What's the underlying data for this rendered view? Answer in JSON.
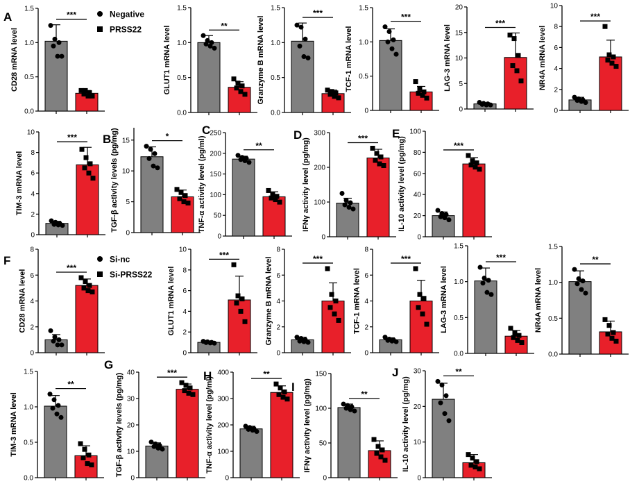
{
  "colors": {
    "group1": "#808080",
    "group2": "#e8202a",
    "axis": "#000000"
  },
  "legends": [
    {
      "entries": [
        {
          "marker": "circle",
          "label": "Negative"
        },
        {
          "marker": "square",
          "label": "PRSS22"
        }
      ]
    },
    {
      "entries": [
        {
          "marker": "circle",
          "label": "Si-nc"
        },
        {
          "marker": "square",
          "label": "Si-PRSS22"
        }
      ]
    }
  ],
  "chart_data": [
    {
      "type": "bar",
      "panel_letter": "A",
      "ylabel": "CD28 mRNA level",
      "ylim": [
        0,
        1.5
      ],
      "yticks": [
        0,
        0.5,
        1.0,
        1.5
      ],
      "tick_labels": [
        "0.0",
        "0.5",
        "1.0",
        "1.5"
      ],
      "categories": [
        "Negative",
        "PRSS22"
      ],
      "values": [
        1.02,
        0.26
      ],
      "errors": [
        0.24,
        0.04
      ],
      "points": [
        [
          1.25,
          1.05,
          1.0,
          0.95,
          0.8,
          0.8
        ],
        [
          0.3,
          0.3,
          0.27,
          0.25,
          0.22,
          0.22
        ]
      ],
      "significance": "***"
    },
    {
      "type": "bar",
      "panel_letter": "",
      "ylabel": "GLUT1 mRNA level",
      "ylim": [
        0,
        1.5
      ],
      "yticks": [
        0,
        0.5,
        1.0,
        1.5
      ],
      "tick_labels": [
        "0.0",
        "0.5",
        "1.0",
        "1.5"
      ],
      "categories": [
        "Negative",
        "PRSS22"
      ],
      "values": [
        1.0,
        0.36
      ],
      "errors": [
        0.1,
        0.08
      ],
      "points": [
        [
          1.1,
          1.03,
          1.0,
          0.98,
          0.95,
          0.92
        ],
        [
          0.48,
          0.42,
          0.38,
          0.35,
          0.3,
          0.26
        ]
      ],
      "significance": "**"
    },
    {
      "type": "bar",
      "panel_letter": "",
      "ylabel": "Granzyme B mRNA level",
      "ylim": [
        0,
        1.5
      ],
      "yticks": [
        0,
        0.5,
        1.0,
        1.5
      ],
      "tick_labels": [
        "0.0",
        "0.5",
        "1.0",
        "1.5"
      ],
      "categories": [
        "Negative",
        "PRSS22"
      ],
      "values": [
        1.02,
        0.27
      ],
      "errors": [
        0.26,
        0.05
      ],
      "points": [
        [
          1.25,
          1.22,
          1.05,
          0.95,
          0.8,
          0.78
        ],
        [
          0.32,
          0.3,
          0.28,
          0.26,
          0.23,
          0.21
        ]
      ],
      "significance": "***"
    },
    {
      "type": "bar",
      "panel_letter": "",
      "ylabel": "TCF-1 mRNA level",
      "ylim": [
        0,
        1.5
      ],
      "yticks": [
        0,
        0.5,
        1.0,
        1.5
      ],
      "tick_labels": [
        "0",
        "0.5",
        "1.0",
        "1.5"
      ],
      "categories": [
        "Negative",
        "PRSS22"
      ],
      "values": [
        1.02,
        0.27
      ],
      "errors": [
        0.17,
        0.08
      ],
      "points": [
        [
          1.22,
          1.15,
          1.03,
          1.0,
          0.9,
          0.82
        ],
        [
          0.42,
          0.32,
          0.27,
          0.25,
          0.22,
          0.18
        ]
      ],
      "significance": "***"
    },
    {
      "type": "bar",
      "panel_letter": "",
      "ylabel": "LAG-3 mRNA level",
      "ylim": [
        0,
        20
      ],
      "yticks": [
        0,
        5,
        10,
        15,
        20
      ],
      "tick_labels": [
        "0",
        "5",
        "10",
        "15",
        "20"
      ],
      "categories": [
        "Negative",
        "PRSS22"
      ],
      "values": [
        1.0,
        10.1
      ],
      "errors": [
        0.2,
        4.8
      ],
      "points": [
        [
          1.3,
          1.1,
          1.0,
          0.9,
          0.8,
          0.8
        ],
        [
          14.5,
          13.8,
          10.5,
          8.5,
          7.5,
          5.5
        ]
      ],
      "significance": "***"
    },
    {
      "type": "bar",
      "panel_letter": "",
      "ylabel": "NR4A mRNA level",
      "ylim": [
        0,
        10
      ],
      "yticks": [
        0,
        2,
        4,
        6,
        8,
        10
      ],
      "tick_labels": [
        "0",
        "2",
        "4",
        "6",
        "8",
        "10"
      ],
      "categories": [
        "Negative",
        "PRSS22"
      ],
      "values": [
        1.0,
        5.1
      ],
      "errors": [
        0.25,
        1.6
      ],
      "points": [
        [
          1.25,
          1.1,
          1.0,
          0.95,
          0.85,
          0.75
        ],
        [
          8.0,
          5.3,
          5.1,
          4.8,
          4.5,
          4.2
        ]
      ],
      "significance": "***"
    },
    {
      "type": "bar",
      "panel_letter": "",
      "ylabel": "TIM-3 mRNA level",
      "ylim": [
        0,
        10
      ],
      "yticks": [
        0,
        2,
        4,
        6,
        8,
        10
      ],
      "tick_labels": [
        "0",
        "2",
        "4",
        "6",
        "8",
        "10"
      ],
      "categories": [
        "Negative",
        "PRSS22"
      ],
      "values": [
        1.1,
        6.8
      ],
      "errors": [
        0.2,
        1.7
      ],
      "points": [
        [
          1.35,
          1.2,
          1.1,
          1.0,
          0.95,
          0.9
        ],
        [
          8.3,
          7.5,
          6.9,
          6.5,
          6.0,
          5.5
        ]
      ],
      "significance": "***"
    },
    {
      "type": "bar",
      "panel_letter": "B",
      "ylabel": "TGF-β activity levels (pg/mg)",
      "ylim": [
        0,
        17
      ],
      "yticks": [
        0,
        5,
        10,
        15
      ],
      "tick_labels": [
        "0",
        "5",
        "10",
        "15"
      ],
      "categories": [
        "Negative",
        "PRSS22"
      ],
      "values": [
        12.3,
        5.8
      ],
      "errors": [
        1.6,
        1.1
      ],
      "points": [
        [
          14.0,
          13.5,
          12.8,
          12.0,
          10.8,
          10.5
        ],
        [
          7.0,
          6.5,
          6.0,
          5.5,
          5.0,
          4.8
        ]
      ],
      "significance": "*"
    },
    {
      "type": "bar",
      "panel_letter": "C",
      "ylabel": "TNF-α activity level (pg/ml)",
      "ylim": [
        0,
        250
      ],
      "yticks": [
        0,
        50,
        100,
        150,
        200,
        250
      ],
      "tick_labels": [
        "0",
        "50",
        "100",
        "150",
        "200",
        "250"
      ],
      "categories": [
        "Negative",
        "PRSS22"
      ],
      "values": [
        186,
        95
      ],
      "errors": [
        7,
        12
      ],
      "points": [
        [
          195,
          190,
          188,
          185,
          182,
          178
        ],
        [
          110,
          100,
          96,
          92,
          88,
          82
        ]
      ],
      "significance": "**"
    },
    {
      "type": "bar",
      "panel_letter": "D",
      "ylabel": "IFNγ activity level (pg/mg)",
      "ylim": [
        0,
        300
      ],
      "yticks": [
        0,
        100,
        200,
        300
      ],
      "tick_labels": [
        "0",
        "100",
        "200",
        "300"
      ],
      "categories": [
        "Negative",
        "PRSS22"
      ],
      "values": [
        97,
        227
      ],
      "errors": [
        14,
        25
      ],
      "points": [
        [
          125,
          105,
          98,
          92,
          85,
          80
        ],
        [
          255,
          240,
          230,
          220,
          210,
          205
        ]
      ],
      "significance": "***"
    },
    {
      "type": "bar",
      "panel_letter": "E",
      "ylabel": "IL-10 activity level (pg/mg)",
      "ylim": [
        0,
        100
      ],
      "yticks": [
        0,
        20,
        40,
        60,
        80,
        100
      ],
      "tick_labels": [
        "0",
        "20",
        "40",
        "60",
        "80",
        "100"
      ],
      "categories": [
        "Negative",
        "PRSS22"
      ],
      "values": [
        20,
        69
      ],
      "errors": [
        3.5,
        6
      ],
      "points": [
        [
          25,
          22,
          21,
          19,
          18,
          16
        ],
        [
          77,
          72,
          70,
          68,
          66,
          64
        ]
      ],
      "significance": "***"
    },
    {
      "type": "bar",
      "panel_letter": "F",
      "ylabel": "CD28 mRNA level",
      "ylim": [
        0,
        8
      ],
      "yticks": [
        0,
        2,
        4,
        6,
        8
      ],
      "tick_labels": [
        "0",
        "2",
        "4",
        "6",
        "8"
      ],
      "categories": [
        "Si-nc",
        "Si-PRSS22"
      ],
      "values": [
        1.0,
        5.2
      ],
      "errors": [
        0.4,
        0.5
      ],
      "points": [
        [
          1.7,
          1.2,
          1.0,
          0.9,
          0.6,
          0.6
        ],
        [
          5.8,
          5.5,
          5.2,
          5.0,
          4.8,
          4.7
        ]
      ],
      "significance": "***"
    },
    {
      "type": "bar",
      "panel_letter": "",
      "ylabel": "GLUT1 mRNA level",
      "ylim": [
        0,
        10
      ],
      "yticks": [
        0,
        2,
        4,
        6,
        8,
        10
      ],
      "tick_labels": [
        "0",
        "2",
        "4",
        "6",
        "8",
        "10"
      ],
      "categories": [
        "Si-nc",
        "Si-PRSS22"
      ],
      "values": [
        1.0,
        5.1
      ],
      "errors": [
        0.1,
        2.3
      ],
      "points": [
        [
          1.1,
          1.05,
          1.0,
          0.98,
          0.95,
          0.92
        ],
        [
          8.5,
          5.5,
          5.2,
          4.8,
          4.0,
          3.0
        ]
      ],
      "significance": "***"
    },
    {
      "type": "bar",
      "panel_letter": "",
      "ylabel": "Granzyme B mRNA level",
      "ylim": [
        0,
        8
      ],
      "yticks": [
        0,
        2,
        4,
        6,
        8
      ],
      "tick_labels": [
        "0",
        "2",
        "4",
        "6",
        "8"
      ],
      "categories": [
        "Si-nc",
        "Si-PRSS22"
      ],
      "values": [
        1.0,
        4.0
      ],
      "errors": [
        0.2,
        1.4
      ],
      "points": [
        [
          1.2,
          1.1,
          1.0,
          0.9,
          0.85,
          0.8
        ],
        [
          6.5,
          4.5,
          4.0,
          3.5,
          3.0,
          2.5
        ]
      ],
      "significance": "***"
    },
    {
      "type": "bar",
      "panel_letter": "",
      "ylabel": "TCF-1 mRNA level",
      "ylim": [
        0,
        8
      ],
      "yticks": [
        0,
        2,
        4,
        6,
        8
      ],
      "tick_labels": [
        "0",
        "2",
        "4",
        "6",
        "8"
      ],
      "categories": [
        "Si-nc",
        "Si-PRSS22"
      ],
      "values": [
        1.0,
        4.0
      ],
      "errors": [
        0.15,
        1.6
      ],
      "points": [
        [
          1.2,
          1.05,
          1.0,
          0.95,
          0.9,
          0.85
        ],
        [
          6.5,
          4.5,
          4.2,
          3.5,
          3.0,
          2.2
        ]
      ],
      "significance": "***"
    },
    {
      "type": "bar",
      "panel_letter": "",
      "ylabel": "LAG-3 mRNA level",
      "ylim": [
        0,
        1.5
      ],
      "yticks": [
        0,
        0.5,
        1.0,
        1.5
      ],
      "tick_labels": [
        "0.0",
        "0.5",
        "1.0",
        "1.5"
      ],
      "categories": [
        "Si-nc",
        "Si-PRSS22"
      ],
      "values": [
        1.01,
        0.24
      ],
      "errors": [
        0.18,
        0.08
      ],
      "points": [
        [
          1.2,
          1.05,
          1.02,
          0.98,
          0.85,
          0.82
        ],
        [
          0.35,
          0.28,
          0.25,
          0.22,
          0.18,
          0.15
        ]
      ],
      "significance": "***"
    },
    {
      "type": "bar",
      "panel_letter": "",
      "ylabel": "NR4A mRNA level",
      "ylim": [
        0,
        1.5
      ],
      "yticks": [
        0,
        0.5,
        1.0,
        1.5
      ],
      "tick_labels": [
        "0.0",
        "0.5",
        "1.0",
        "1.5"
      ],
      "categories": [
        "Si-nc",
        "Si-PRSS22"
      ],
      "values": [
        1.01,
        0.31
      ],
      "errors": [
        0.15,
        0.15
      ],
      "points": [
        [
          1.18,
          1.05,
          1.02,
          0.98,
          0.9,
          0.85
        ],
        [
          0.48,
          0.4,
          0.3,
          0.28,
          0.22,
          0.18
        ]
      ],
      "significance": "**"
    },
    {
      "type": "bar",
      "panel_letter": "",
      "ylabel": "TIM-3 mRNA level",
      "ylim": [
        0,
        1.5
      ],
      "yticks": [
        0,
        0.5,
        1.0,
        1.5
      ],
      "tick_labels": [
        "0.0",
        "0.5",
        "1.0",
        "1.5"
      ],
      "categories": [
        "Si-nc",
        "Si-PRSS22"
      ],
      "values": [
        1.01,
        0.31
      ],
      "errors": [
        0.15,
        0.14
      ],
      "points": [
        [
          1.18,
          1.1,
          1.02,
          0.98,
          0.9,
          0.85
        ],
        [
          0.48,
          0.4,
          0.32,
          0.28,
          0.2,
          0.18
        ]
      ],
      "significance": "**"
    },
    {
      "type": "bar",
      "panel_letter": "G",
      "ylabel": "TGF-β activity levels (pg/mg)",
      "ylim": [
        0,
        40
      ],
      "yticks": [
        0,
        10,
        20,
        30,
        40
      ],
      "tick_labels": [
        "0",
        "10",
        "20",
        "30",
        "40"
      ],
      "categories": [
        "Si-nc",
        "Si-PRSS22"
      ],
      "values": [
        12,
        33.5
      ],
      "errors": [
        1.2,
        2
      ],
      "points": [
        [
          13.5,
          12.8,
          12.2,
          11.8,
          11.2,
          10.8
        ],
        [
          36,
          35,
          34,
          33,
          32,
          31.5
        ]
      ],
      "significance": "***"
    },
    {
      "type": "bar",
      "panel_letter": "H",
      "ylabel": "TNF-α activity level (pg/ml)",
      "ylim": [
        0,
        400
      ],
      "yticks": [
        0,
        100,
        200,
        300,
        400
      ],
      "tick_labels": [
        "0",
        "100",
        "200",
        "300",
        "400"
      ],
      "categories": [
        "Si-nc",
        "Si-PRSS22"
      ],
      "values": [
        185,
        323
      ],
      "errors": [
        10,
        25
      ],
      "points": [
        [
          195,
          190,
          186,
          183,
          180,
          175
        ],
        [
          355,
          340,
          325,
          315,
          305,
          298
        ]
      ],
      "significance": "**"
    },
    {
      "type": "bar",
      "panel_letter": "I",
      "ylabel": "IFNγ activity level (pg/mg)",
      "ylim": [
        0,
        150
      ],
      "yticks": [
        0,
        50,
        100,
        150
      ],
      "tick_labels": [
        "0",
        "50",
        "100",
        "150"
      ],
      "categories": [
        "Si-nc",
        "Si-PRSS22"
      ],
      "values": [
        101,
        39
      ],
      "errors": [
        5,
        14
      ],
      "points": [
        [
          106,
          104,
          102,
          100,
          98,
          96
        ],
        [
          55,
          45,
          40,
          35,
          30,
          25
        ]
      ],
      "significance": "**"
    },
    {
      "type": "bar",
      "panel_letter": "J",
      "ylabel": "IL-10 activity level (pg/mg)",
      "ylim": [
        0,
        30
      ],
      "yticks": [
        0,
        10,
        20,
        30
      ],
      "tick_labels": [
        "0",
        "10",
        "20",
        "30"
      ],
      "categories": [
        "Si-nc",
        "Si-PRSS22"
      ],
      "values": [
        22,
        4.2
      ],
      "errors": [
        4.5,
        2.3
      ],
      "points": [
        [
          27,
          26,
          23,
          21,
          18,
          16
        ],
        [
          6.5,
          5.5,
          4.5,
          3.5,
          3.0,
          2.5
        ]
      ],
      "significance": "**"
    }
  ]
}
